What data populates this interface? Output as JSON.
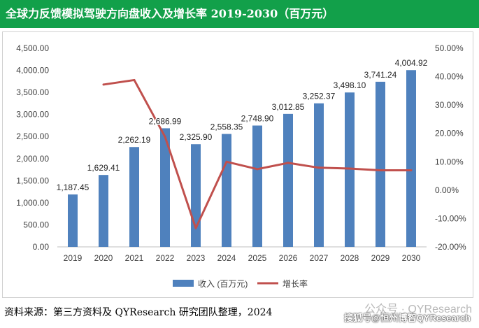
{
  "title": "全球力反馈模拟驾驶方向盘收入及增长率 2019-2030（百万元）",
  "source_text": "资料来源：第三方资料及 QYResearch 研究团队整理，2024",
  "watermark_text": "公众号 · QYResearch",
  "watermark_overlay": "搜狐号@恒州博智QYResearch",
  "colors": {
    "bar": "#4f81bd",
    "line": "#c0504d",
    "title_bg": "#12a04a"
  },
  "chart_data": {
    "type": "bar",
    "categories": [
      "2019",
      "2020",
      "2021",
      "2022",
      "2023",
      "2024",
      "2025",
      "2026",
      "2027",
      "2028",
      "2029",
      "2030"
    ],
    "series": [
      {
        "name": "收入 (百万元)",
        "type": "bar",
        "axis": "left",
        "values": [
          1187.45,
          1629.41,
          2262.19,
          2686.99,
          2325.9,
          2558.35,
          2748.9,
          3012.85,
          3252.37,
          3498.1,
          3741.24,
          4004.92
        ],
        "labels": [
          "1,187.45",
          "1,629.41",
          "2,262.19",
          "2,686.99",
          "2,325.90",
          "2,558.35",
          "2,748.90",
          "3,012.85",
          "3,252.37",
          "3,498.10",
          "3,741.24",
          "4,004.92"
        ]
      },
      {
        "name": "增长率",
        "type": "line",
        "axis": "right",
        "values": [
          null,
          37.2,
          38.8,
          18.8,
          -13.4,
          10.0,
          7.4,
          9.6,
          7.9,
          7.6,
          7.0,
          7.0
        ]
      }
    ],
    "y_left": {
      "min": 0,
      "max": 4500,
      "step": 500,
      "ticks": [
        "0.00",
        "500.00",
        "1,000.00",
        "1,500.00",
        "2,000.00",
        "2,500.00",
        "3,000.00",
        "3,500.00",
        "4,000.00",
        "4,500.00"
      ]
    },
    "y_right": {
      "min": -20,
      "max": 50,
      "step": 10,
      "ticks": [
        "-20.00%",
        "-10.00%",
        "0.00%",
        "10.00%",
        "20.00%",
        "30.00%",
        "40.00%",
        "50.00%"
      ]
    },
    "legend_position": "bottom",
    "grid": false
  }
}
